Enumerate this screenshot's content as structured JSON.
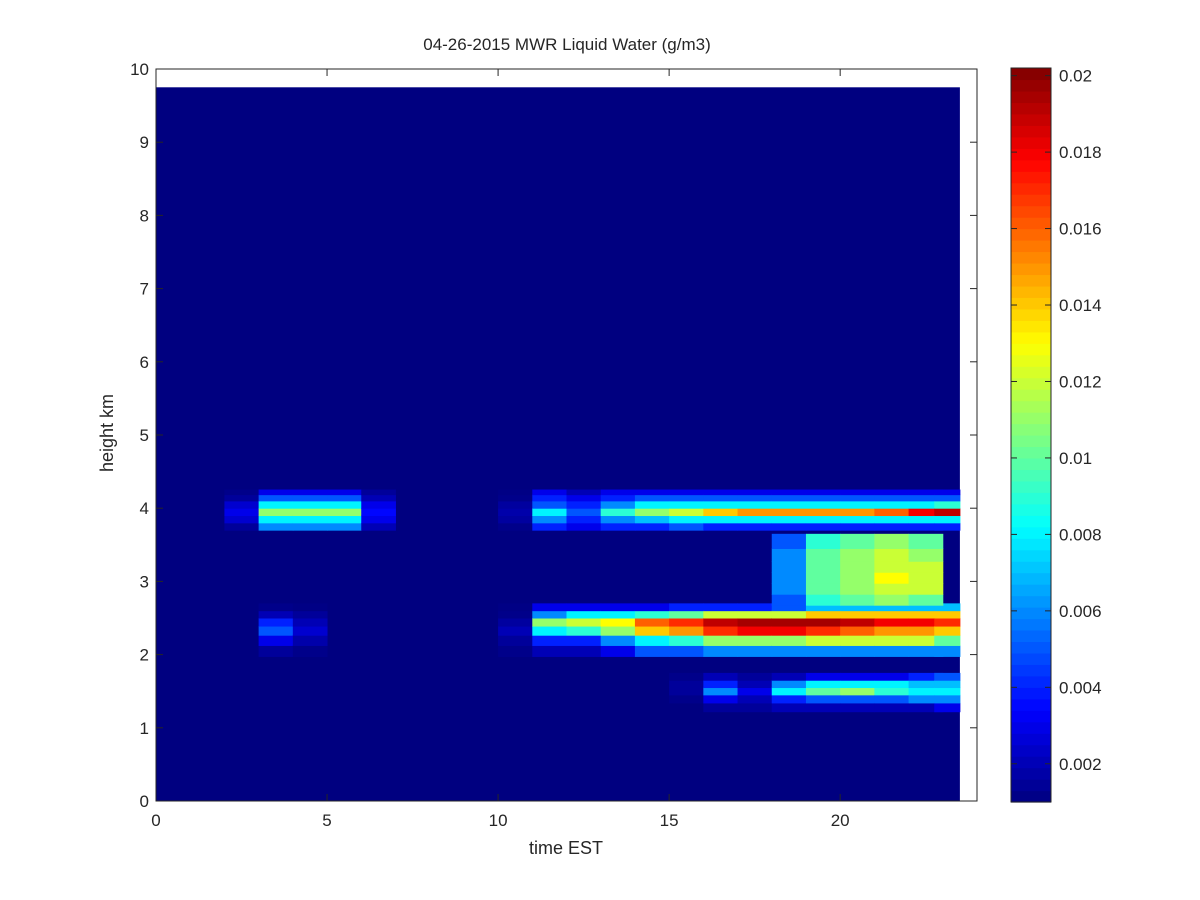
{
  "chart_data": {
    "type": "heatmap",
    "title": "04-26-2015 MWR Liquid Water (g/m3)",
    "xlabel": "time EST",
    "ylabel": "height km",
    "xlim": [
      0,
      24
    ],
    "ylim": [
      0,
      10
    ],
    "x_ticks": [
      0,
      5,
      10,
      15,
      20
    ],
    "y_ticks": [
      0,
      1,
      2,
      3,
      4,
      5,
      6,
      7,
      8,
      9,
      10
    ],
    "colormap": "jet",
    "clim": [
      0.001,
      0.0202
    ],
    "colorbar_ticks": [
      0.002,
      0.004,
      0.006,
      0.008,
      0.01,
      0.012,
      0.014,
      0.016,
      0.018,
      0.02
    ],
    "colorbar_tick_labels": [
      "0.002",
      "0.004",
      "0.006",
      "0.008",
      "0.01",
      "0.012",
      "0.014",
      "0.016",
      "0.018",
      "0.02"
    ],
    "data_extent": {
      "x": [
        0,
        23.5
      ],
      "y": [
        0,
        9.75
      ]
    },
    "time_step_hours": 1,
    "background_value": 0.001,
    "bands": [
      {
        "height_km": [
          3.75,
          3.85,
          3.95,
          4.05,
          4.15,
          4.22
        ],
        "cells": [
          {
            "t": 2.5,
            "v": [
              0.0015,
              0.0025,
              0.003,
              0.0025,
              0.0015,
              0.0012
            ]
          },
          {
            "t": 3.5,
            "v": [
              0.006,
              0.008,
              0.011,
              0.008,
              0.005,
              0.003
            ]
          },
          {
            "t": 4.5,
            "v": [
              0.006,
              0.008,
              0.011,
              0.008,
              0.005,
              0.003
            ]
          },
          {
            "t": 5.5,
            "v": [
              0.006,
              0.008,
              0.011,
              0.008,
              0.005,
              0.003
            ]
          },
          {
            "t": 6.5,
            "v": [
              0.002,
              0.003,
              0.0035,
              0.003,
              0.002,
              0.0015
            ]
          },
          {
            "t": 10.5,
            "v": [
              0.0012,
              0.0016,
              0.0018,
              0.0016,
              0.0012,
              0.0011
            ]
          },
          {
            "t": 11.5,
            "v": [
              0.004,
              0.006,
              0.008,
              0.005,
              0.004,
              0.003
            ]
          },
          {
            "t": 12.5,
            "v": [
              0.003,
              0.004,
              0.005,
              0.004,
              0.003,
              0.002
            ]
          },
          {
            "t": 13.5,
            "v": [
              0.004,
              0.006,
              0.009,
              0.006,
              0.004,
              0.003
            ]
          },
          {
            "t": 14.5,
            "v": [
              0.004,
              0.007,
              0.011,
              0.008,
              0.005,
              0.003
            ]
          },
          {
            "t": 15.5,
            "v": [
              0.005,
              0.008,
              0.012,
              0.008,
              0.005,
              0.003
            ]
          },
          {
            "t": 16.5,
            "v": [
              0.004,
              0.008,
              0.014,
              0.008,
              0.005,
              0.003
            ]
          },
          {
            "t": 17.5,
            "v": [
              0.004,
              0.008,
              0.015,
              0.008,
              0.005,
              0.003
            ]
          },
          {
            "t": 18.5,
            "v": [
              0.004,
              0.008,
              0.015,
              0.008,
              0.005,
              0.003
            ]
          },
          {
            "t": 19.5,
            "v": [
              0.004,
              0.008,
              0.015,
              0.008,
              0.005,
              0.003
            ]
          },
          {
            "t": 20.5,
            "v": [
              0.004,
              0.008,
              0.015,
              0.008,
              0.005,
              0.003
            ]
          },
          {
            "t": 21.5,
            "v": [
              0.004,
              0.008,
              0.016,
              0.008,
              0.005,
              0.003
            ]
          },
          {
            "t": 22.5,
            "v": [
              0.004,
              0.008,
              0.018,
              0.008,
              0.005,
              0.003
            ]
          },
          {
            "t": 23.25,
            "v": [
              0.004,
              0.008,
              0.019,
              0.009,
              0.005,
              0.003
            ]
          }
        ]
      },
      {
        "height_km": [
          2.05,
          2.2,
          2.33,
          2.45,
          2.55,
          2.65
        ],
        "cells": [
          {
            "t": 3.5,
            "v": [
              0.0015,
              0.003,
              0.005,
              0.004,
              0.002,
              0.0012
            ]
          },
          {
            "t": 4.5,
            "v": [
              0.0012,
              0.0018,
              0.0025,
              0.002,
              0.0015,
              0.0011
            ]
          },
          {
            "t": 10.5,
            "v": [
              0.0012,
              0.0015,
              0.002,
              0.0016,
              0.0012,
              0.0011
            ]
          },
          {
            "t": 11.5,
            "v": [
              0.002,
              0.004,
              0.008,
              0.011,
              0.006,
              0.003
            ]
          },
          {
            "t": 12.5,
            "v": [
              0.002,
              0.004,
              0.009,
              0.012,
              0.008,
              0.003
            ]
          },
          {
            "t": 13.5,
            "v": [
              0.003,
              0.006,
              0.011,
              0.013,
              0.008,
              0.003
            ]
          },
          {
            "t": 14.5,
            "v": [
              0.005,
              0.008,
              0.014,
              0.016,
              0.009,
              0.003
            ]
          },
          {
            "t": 15.5,
            "v": [
              0.005,
              0.009,
              0.015,
              0.017,
              0.01,
              0.004
            ]
          },
          {
            "t": 16.5,
            "v": [
              0.006,
              0.011,
              0.017,
              0.019,
              0.012,
              0.004
            ]
          },
          {
            "t": 17.5,
            "v": [
              0.006,
              0.011,
              0.018,
              0.0195,
              0.012,
              0.004
            ]
          },
          {
            "t": 18.5,
            "v": [
              0.006,
              0.011,
              0.018,
              0.0195,
              0.012,
              0.005
            ]
          },
          {
            "t": 19.5,
            "v": [
              0.006,
              0.012,
              0.017,
              0.0195,
              0.014,
              0.007
            ]
          },
          {
            "t": 20.5,
            "v": [
              0.006,
              0.012,
              0.016,
              0.019,
              0.014,
              0.007
            ]
          },
          {
            "t": 21.5,
            "v": [
              0.006,
              0.012,
              0.015,
              0.018,
              0.014,
              0.007
            ]
          },
          {
            "t": 22.5,
            "v": [
              0.006,
              0.012,
              0.015,
              0.018,
              0.014,
              0.007
            ]
          },
          {
            "t": 23.25,
            "v": [
              0.006,
              0.01,
              0.014,
              0.017,
              0.014,
              0.007
            ]
          }
        ]
      },
      {
        "height_km": [
          2.75,
          2.9,
          3.05,
          3.2,
          3.35,
          3.55
        ],
        "cells": [
          {
            "t": 18.5,
            "v": [
              0.005,
              0.006,
              0.006,
              0.006,
              0.006,
              0.005
            ]
          },
          {
            "t": 19.5,
            "v": [
              0.009,
              0.01,
              0.01,
              0.01,
              0.01,
              0.009
            ]
          },
          {
            "t": 20.5,
            "v": [
              0.01,
              0.011,
              0.011,
              0.011,
              0.011,
              0.01
            ]
          },
          {
            "t": 21.5,
            "v": [
              0.011,
              0.012,
              0.013,
              0.012,
              0.012,
              0.011
            ]
          },
          {
            "t": 22.5,
            "v": [
              0.01,
              0.012,
              0.012,
              0.012,
              0.011,
              0.01
            ]
          }
        ]
      },
      {
        "height_km": [
          1.28,
          1.4,
          1.5,
          1.6,
          1.7
        ],
        "cells": [
          {
            "t": 15.5,
            "v": [
              0.001,
              0.0012,
              0.0015,
              0.0015,
              0.0012
            ]
          },
          {
            "t": 16.5,
            "v": [
              0.0015,
              0.003,
              0.006,
              0.004,
              0.002
            ]
          },
          {
            "t": 17.5,
            "v": [
              0.0015,
              0.002,
              0.003,
              0.002,
              0.0015
            ]
          },
          {
            "t": 18.5,
            "v": [
              0.002,
              0.004,
              0.008,
              0.006,
              0.002
            ]
          },
          {
            "t": 19.5,
            "v": [
              0.002,
              0.005,
              0.01,
              0.008,
              0.003
            ]
          },
          {
            "t": 20.5,
            "v": [
              0.002,
              0.005,
              0.011,
              0.008,
              0.003
            ]
          },
          {
            "t": 21.5,
            "v": [
              0.002,
              0.005,
              0.009,
              0.008,
              0.003
            ]
          },
          {
            "t": 22.5,
            "v": [
              0.002,
              0.006,
              0.008,
              0.007,
              0.004
            ]
          },
          {
            "t": 23.25,
            "v": [
              0.003,
              0.006,
              0.008,
              0.007,
              0.005
            ]
          }
        ]
      }
    ]
  }
}
